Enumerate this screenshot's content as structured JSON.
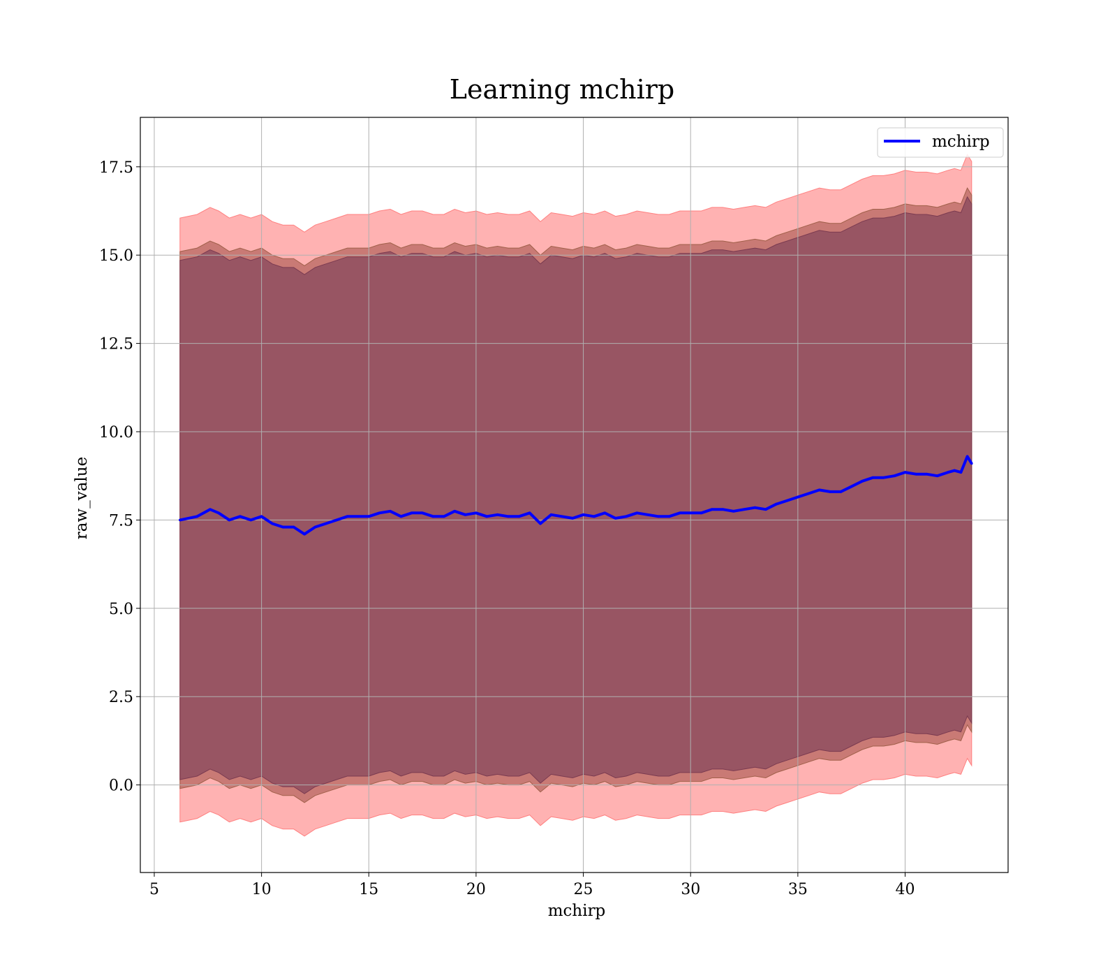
{
  "chart_data": {
    "type": "area",
    "title": "Learning mchirp",
    "xlabel": "mchirp",
    "ylabel": "raw_value",
    "xlim": [
      4.35,
      44.8
    ],
    "ylim": [
      -2.48,
      18.9
    ],
    "xticks": [
      5,
      10,
      15,
      20,
      25,
      30,
      35,
      40
    ],
    "xtick_labels": [
      "5",
      "10",
      "15",
      "20",
      "25",
      "30",
      "35",
      "40"
    ],
    "yticks": [
      0,
      2.5,
      5,
      7.5,
      10,
      12.5,
      15,
      17.5
    ],
    "ytick_labels": [
      "0.0",
      "2.5",
      "5.0",
      "7.5",
      "10.0",
      "12.5",
      "15.0",
      "17.5"
    ],
    "grid": true,
    "legend_position": "top-right",
    "series": [
      {
        "name": "mchirp",
        "color": "#0000ff",
        "x": [
          6.2,
          7.0,
          7.6,
          8.0,
          8.5,
          9.0,
          9.5,
          10.0,
          10.5,
          11.0,
          11.5,
          12.0,
          12.5,
          13.0,
          13.5,
          14.0,
          14.5,
          15.0,
          15.5,
          16.0,
          16.5,
          17.0,
          17.5,
          18.0,
          18.5,
          19.0,
          19.5,
          20.0,
          20.5,
          21.0,
          21.5,
          22.0,
          22.5,
          23.0,
          23.5,
          24.0,
          24.5,
          25.0,
          25.5,
          26.0,
          26.5,
          27.0,
          27.5,
          28.0,
          28.5,
          29.0,
          29.5,
          30.0,
          30.5,
          31.0,
          31.5,
          32.0,
          32.5,
          33.0,
          33.5,
          34.0,
          34.5,
          35.0,
          35.5,
          36.0,
          36.5,
          37.0,
          37.5,
          38.0,
          38.5,
          39.0,
          39.5,
          40.0,
          40.5,
          41.0,
          41.5,
          42.0,
          42.3,
          42.6,
          42.9,
          43.1
        ],
        "y": [
          7.5,
          7.6,
          7.8,
          7.7,
          7.5,
          7.6,
          7.5,
          7.6,
          7.4,
          7.3,
          7.3,
          7.1,
          7.3,
          7.4,
          7.5,
          7.6,
          7.6,
          7.6,
          7.7,
          7.75,
          7.6,
          7.7,
          7.7,
          7.6,
          7.6,
          7.75,
          7.65,
          7.7,
          7.6,
          7.65,
          7.6,
          7.6,
          7.7,
          7.4,
          7.65,
          7.6,
          7.55,
          7.65,
          7.6,
          7.7,
          7.55,
          7.6,
          7.7,
          7.65,
          7.6,
          7.6,
          7.7,
          7.7,
          7.7,
          7.8,
          7.8,
          7.75,
          7.8,
          7.85,
          7.8,
          7.95,
          8.05,
          8.15,
          8.25,
          8.35,
          8.3,
          8.3,
          8.45,
          8.6,
          8.7,
          8.7,
          8.75,
          8.85,
          8.8,
          8.8,
          8.75,
          8.85,
          8.9,
          8.85,
          9.3,
          9.1
        ]
      }
    ],
    "bands": {
      "x": [
        6.2,
        7.0,
        7.6,
        8.0,
        8.5,
        9.0,
        9.5,
        10.0,
        10.5,
        11.0,
        11.5,
        12.0,
        12.5,
        13.0,
        13.5,
        14.0,
        14.5,
        15.0,
        15.5,
        16.0,
        16.5,
        17.0,
        17.5,
        18.0,
        18.5,
        19.0,
        19.5,
        20.0,
        20.5,
        21.0,
        21.5,
        22.0,
        22.5,
        23.0,
        23.5,
        24.0,
        24.5,
        25.0,
        25.5,
        26.0,
        26.5,
        27.0,
        27.5,
        28.0,
        28.5,
        29.0,
        29.5,
        30.0,
        30.5,
        31.0,
        31.5,
        32.0,
        32.5,
        33.0,
        33.5,
        34.0,
        34.5,
        35.0,
        35.5,
        36.0,
        36.5,
        37.0,
        37.5,
        38.0,
        38.5,
        39.0,
        39.5,
        40.0,
        40.5,
        41.0,
        41.5,
        42.0,
        42.3,
        42.6,
        42.9,
        43.1
      ],
      "outer": {
        "color": "#ff7f7f",
        "offset": 8.55
      },
      "middle": {
        "color": "#c0706a",
        "offset": 7.6
      },
      "inner": {
        "color": "#8b4a5e",
        "offset": 7.35
      }
    }
  }
}
